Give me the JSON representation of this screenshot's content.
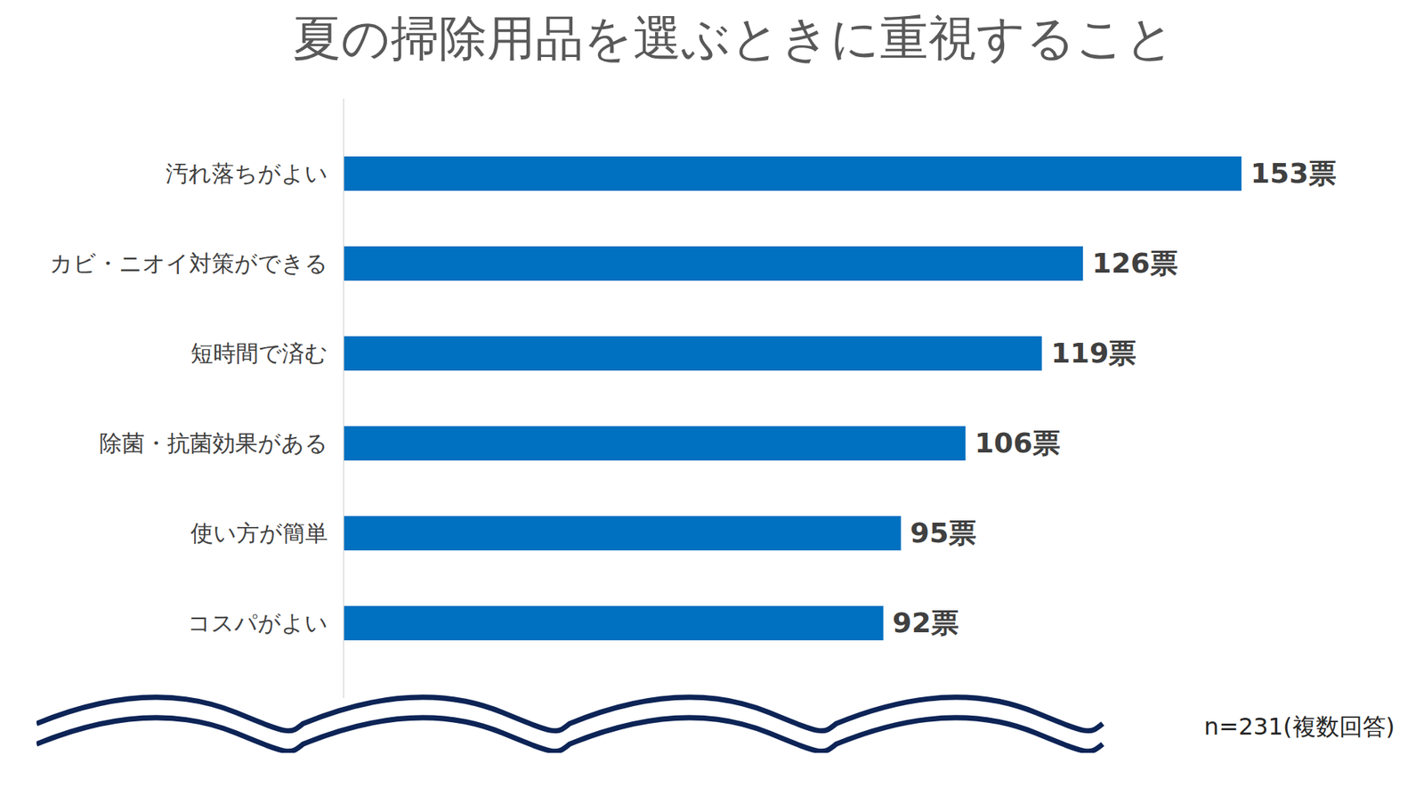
{
  "chart_data": {
    "type": "bar",
    "title": "夏の掃除用品を選ぶときに重視すること",
    "orientation": "horizontal",
    "categories": [
      "汚れ落ちがよい",
      "カビ・ニオイ対策ができる",
      "短時間で済む",
      "除菌・抗菌効果がある",
      "使い方が簡単",
      "コスパがよい"
    ],
    "values": [
      153,
      126,
      119,
      106,
      95,
      92
    ],
    "value_labels": [
      "153票",
      "126票",
      "119票",
      "106票",
      "95票",
      "92票"
    ],
    "color": "#0070C0",
    "xlim": [
      0,
      153
    ],
    "grid": false,
    "data_labels": true,
    "tick_labels": "y",
    "caption": "n=231(複数回答)"
  }
}
